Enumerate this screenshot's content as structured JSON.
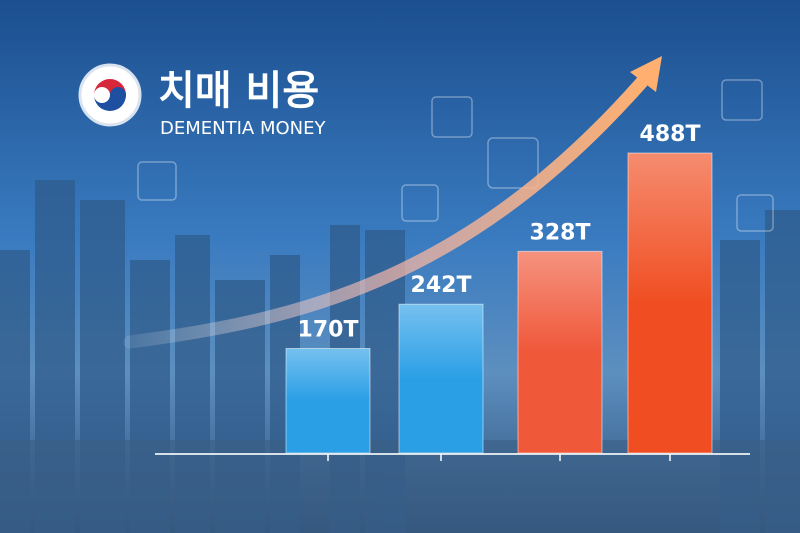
{
  "chart_data": {
    "type": "bar",
    "title": "치매 비용",
    "subtitle": "DEMENTIA MONEY",
    "categories": [
      null,
      null,
      null,
      null
    ],
    "values": [
      170,
      242,
      328,
      488
    ],
    "value_labels": [
      "170T",
      "242T",
      "328T",
      "488T"
    ],
    "colors": [
      "#2b9fe6",
      "#2b9fe6",
      "#f0583a",
      "#f04e22"
    ]
  }
}
